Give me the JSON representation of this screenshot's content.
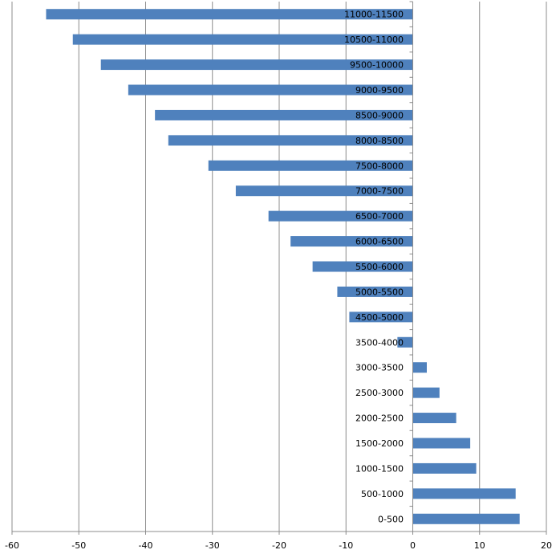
{
  "chart_data": {
    "type": "bar",
    "orientation": "horizontal",
    "title": "",
    "xlabel": "",
    "ylabel": "",
    "xlim": [
      -60,
      20
    ],
    "xticks": [
      -60,
      -50,
      -40,
      -30,
      -20,
      -10,
      0,
      10,
      20
    ],
    "grid": "vertical",
    "legend": "none",
    "bar_color": "#4F81BD",
    "categories": [
      "0-500",
      "500-1000",
      "1000-1500",
      "1500-2000",
      "2000-2500",
      "2500-3000",
      "3000-3500",
      "3500-4000",
      "4500-5000",
      "5000-5500",
      "5500-6000",
      "6000-6500",
      "6500-7000",
      "7000-7500",
      "7500-8000",
      "8000-8500",
      "8500-9000",
      "9000-9500",
      "9500-10000",
      "10500-11000",
      "11000-11500"
    ],
    "values": [
      16.0,
      15.4,
      9.5,
      8.6,
      6.5,
      4.0,
      2.1,
      -2.3,
      -9.5,
      -11.3,
      -15.0,
      -18.3,
      -21.6,
      -26.5,
      -30.6,
      -36.6,
      -38.6,
      -42.6,
      -46.7,
      -50.9,
      -54.9
    ]
  }
}
